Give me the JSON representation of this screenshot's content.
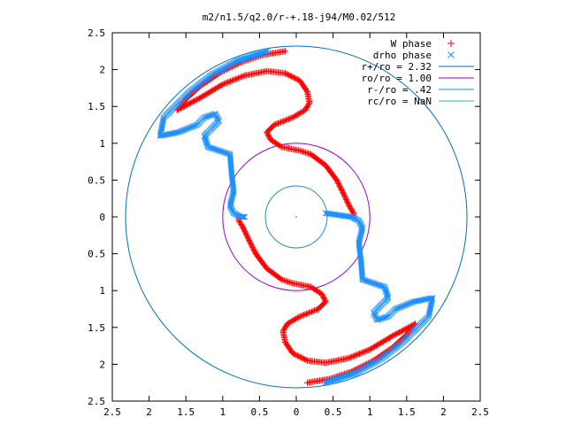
{
  "chart_data": {
    "type": "scatter",
    "title": "m2/n1.5/q2.0/r-+.18-j94/M0.02/512",
    "xlabel": "",
    "ylabel": "",
    "xlim": [
      -2.5,
      2.5
    ],
    "ylim": [
      -2.5,
      2.5
    ],
    "x_ticks": [
      "2.5",
      "2",
      "1.5",
      "1",
      "0.5",
      "0",
      "0.5",
      "1",
      "1.5",
      "2",
      "2.5"
    ],
    "y_ticks": [
      "2.5",
      "2",
      "1.5",
      "1",
      "0.5",
      "0",
      "0.5",
      "1",
      "1.5",
      "2",
      "2.5"
    ],
    "grid": false,
    "legend_position": "top-right",
    "legend": [
      {
        "label": "W phase",
        "marker": "plus",
        "color": "#ff0000"
      },
      {
        "label": "drho phase",
        "marker": "cross",
        "color": "#1e90ff"
      },
      {
        "label": "r+/ro = 2.32",
        "marker": "line",
        "color": "#0072b2"
      },
      {
        "label": "ro/ro = 1.00",
        "marker": "line",
        "color": "#9400d3"
      },
      {
        "label": "r-/ro = .42",
        "marker": "line",
        "color": "#2b8bc9"
      },
      {
        "label": "rc/ro = NaN",
        "marker": "line",
        "color": "#30b0d0"
      }
    ],
    "circles": [
      {
        "name": "r+/ro = 2.32",
        "radius": 2.32,
        "color": "#0072b2"
      },
      {
        "name": "ro/ro = 1.00",
        "radius": 1.0,
        "color": "#9400d3"
      },
      {
        "name": "r-/ro = .42",
        "radius": 0.42,
        "color": "#2b8bc9"
      }
    ],
    "series": [
      {
        "name": "W phase",
        "color": "#ff0000",
        "marker": "plus",
        "arms": [
          [
            [
              -0.15,
              2.25
            ],
            [
              -0.45,
              2.2
            ],
            [
              -0.75,
              2.1
            ],
            [
              -1.05,
              1.95
            ],
            [
              -1.3,
              1.78
            ],
            [
              -1.5,
              1.6
            ],
            [
              -1.62,
              1.45
            ],
            [
              -1.3,
              1.62
            ],
            [
              -1.0,
              1.8
            ],
            [
              -0.7,
              1.92
            ],
            [
              -0.4,
              1.98
            ],
            [
              -0.15,
              1.95
            ],
            [
              0.05,
              1.85
            ],
            [
              0.15,
              1.7
            ],
            [
              0.18,
              1.55
            ],
            [
              0.12,
              1.45
            ],
            [
              -0.05,
              1.35
            ],
            [
              -0.3,
              1.25
            ],
            [
              -0.4,
              1.15
            ],
            [
              -0.35,
              1.05
            ],
            [
              -0.2,
              0.95
            ],
            [
              0.05,
              0.9
            ],
            [
              0.2,
              0.85
            ],
            [
              0.4,
              0.7
            ],
            [
              0.55,
              0.5
            ],
            [
              0.65,
              0.3
            ],
            [
              0.72,
              0.15
            ],
            [
              0.78,
              0.05
            ],
            [
              0.78,
              -0.02
            ]
          ],
          [
            [
              0.15,
              -2.25
            ],
            [
              0.45,
              -2.2
            ],
            [
              0.75,
              -2.1
            ],
            [
              1.05,
              -1.95
            ],
            [
              1.3,
              -1.78
            ],
            [
              1.5,
              -1.6
            ],
            [
              1.62,
              -1.45
            ],
            [
              1.3,
              -1.62
            ],
            [
              1.0,
              -1.8
            ],
            [
              0.7,
              -1.92
            ],
            [
              0.4,
              -1.98
            ],
            [
              0.15,
              -1.95
            ],
            [
              -0.05,
              -1.85
            ],
            [
              -0.15,
              -1.7
            ],
            [
              -0.18,
              -1.55
            ],
            [
              -0.12,
              -1.45
            ],
            [
              0.05,
              -1.35
            ],
            [
              0.3,
              -1.25
            ],
            [
              0.4,
              -1.15
            ],
            [
              0.35,
              -1.05
            ],
            [
              0.2,
              -0.95
            ],
            [
              -0.05,
              -0.9
            ],
            [
              -0.2,
              -0.85
            ],
            [
              -0.4,
              -0.7
            ],
            [
              -0.55,
              -0.5
            ],
            [
              -0.65,
              -0.3
            ],
            [
              -0.72,
              -0.15
            ],
            [
              -0.78,
              -0.05
            ],
            [
              -0.78,
              0.02
            ]
          ]
        ]
      },
      {
        "name": "drho phase",
        "color": "#1e90ff",
        "marker": "cross",
        "arms": [
          [
            [
              -0.4,
              2.25
            ],
            [
              -0.8,
              2.12
            ],
            [
              -1.15,
              1.93
            ],
            [
              -1.45,
              1.7
            ],
            [
              -1.65,
              1.5
            ],
            [
              -1.8,
              1.35
            ],
            [
              -1.85,
              1.1
            ],
            [
              -1.6,
              1.15
            ],
            [
              -1.35,
              1.25
            ],
            [
              -1.25,
              1.35
            ],
            [
              -1.1,
              1.4
            ],
            [
              -1.05,
              1.3
            ],
            [
              -1.25,
              1.1
            ],
            [
              -1.2,
              0.95
            ],
            [
              -1.05,
              0.9
            ],
            [
              -0.9,
              0.85
            ],
            [
              -0.88,
              0.6
            ],
            [
              -0.85,
              0.35
            ],
            [
              -0.9,
              0.15
            ],
            [
              -0.85,
              0.05
            ],
            [
              -0.75,
              0.0
            ],
            [
              -0.7,
              0.0
            ]
          ],
          [
            [
              0.4,
              -2.25
            ],
            [
              0.8,
              -2.12
            ],
            [
              1.15,
              -1.93
            ],
            [
              1.45,
              -1.7
            ],
            [
              1.65,
              -1.5
            ],
            [
              1.8,
              -1.35
            ],
            [
              1.85,
              -1.1
            ],
            [
              1.6,
              -1.15
            ],
            [
              1.35,
              -1.25
            ],
            [
              1.25,
              -1.35
            ],
            [
              1.1,
              -1.4
            ],
            [
              1.05,
              -1.3
            ],
            [
              1.25,
              -1.1
            ],
            [
              1.2,
              -0.95
            ],
            [
              1.05,
              -0.9
            ],
            [
              0.9,
              -0.85
            ],
            [
              0.88,
              -0.6
            ],
            [
              0.85,
              -0.35
            ],
            [
              0.9,
              -0.15
            ],
            [
              0.85,
              -0.05
            ],
            [
              0.75,
              0.0
            ],
            [
              0.4,
              0.05
            ]
          ]
        ]
      }
    ]
  }
}
